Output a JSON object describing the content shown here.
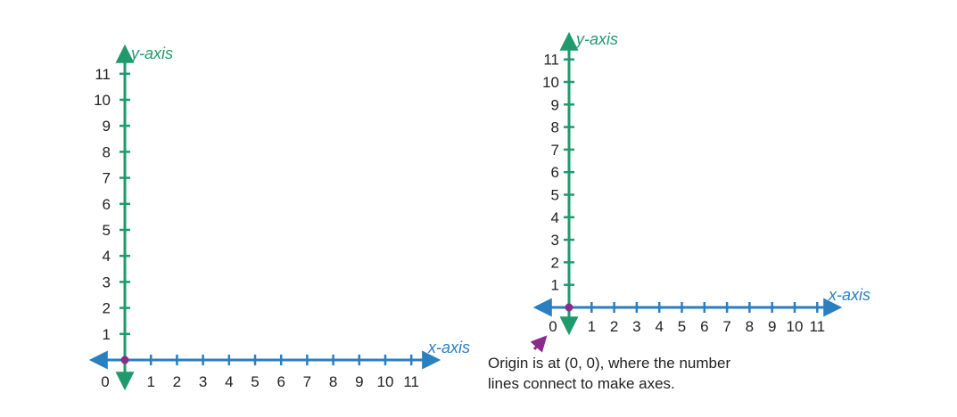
{
  "colors": {
    "x_axis": "#2a7fc0",
    "y_axis": "#1f9a6d",
    "origin": "#8b2a8b",
    "text": "#222222"
  },
  "graphs": [
    {
      "x_axis_label": "x-axis",
      "y_axis_label": "y-axis",
      "origin_label": "0",
      "x_tick_labels": [
        "1",
        "2",
        "3",
        "4",
        "5",
        "6",
        "7",
        "8",
        "9",
        "10",
        "11"
      ],
      "y_tick_labels": [
        "1",
        "2",
        "3",
        "4",
        "5",
        "6",
        "7",
        "8",
        "9",
        "10",
        "11"
      ],
      "origin_marked": true
    },
    {
      "x_axis_label": "x-axis",
      "y_axis_label": "y-axis",
      "origin_label": "0",
      "x_tick_labels": [
        "1",
        "2",
        "3",
        "4",
        "5",
        "6",
        "7",
        "8",
        "9",
        "10",
        "11"
      ],
      "y_tick_labels": [
        "1",
        "2",
        "3",
        "4",
        "5",
        "6",
        "7",
        "8",
        "9",
        "10",
        "11"
      ],
      "origin_marked": true
    }
  ],
  "annotation": {
    "arrow_icon": "origin-pointer-arrow",
    "line1": "Origin is at (0, 0), where the number",
    "line2": "lines connect to make axes."
  }
}
